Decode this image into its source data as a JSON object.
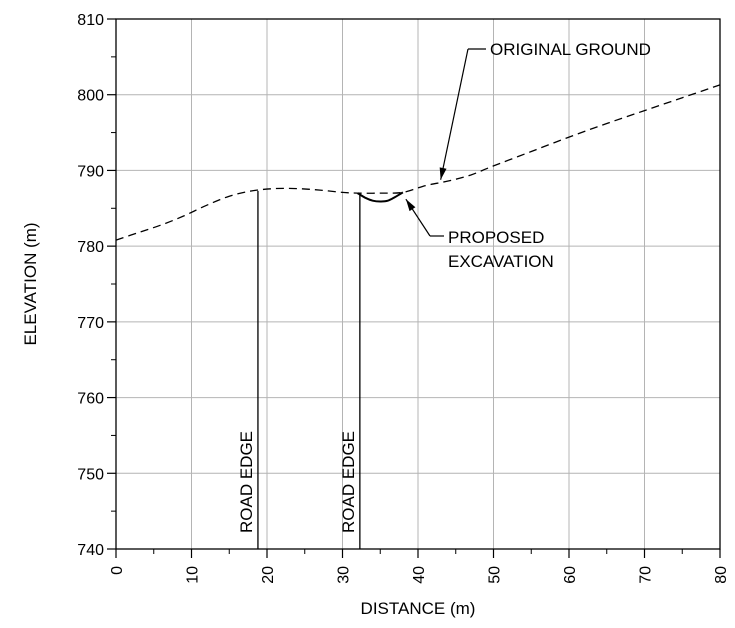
{
  "chart_data": {
    "type": "line",
    "title": "",
    "xlabel": "DISTANCE (m)",
    "ylabel": "ELEVATION (m)",
    "xlim": [
      0,
      80
    ],
    "ylim": [
      740,
      810
    ],
    "x_ticks": [
      0,
      10,
      20,
      30,
      40,
      50,
      60,
      70,
      80
    ],
    "y_ticks": [
      740,
      750,
      760,
      770,
      780,
      790,
      800,
      810
    ],
    "x_tick_labels": [
      "0",
      "10",
      "20",
      "30",
      "40",
      "50",
      "60",
      "70",
      "80"
    ],
    "y_tick_labels": [
      "740",
      "750",
      "760",
      "770",
      "780",
      "790",
      "800",
      "810"
    ],
    "grid": true,
    "series": [
      {
        "name": "ORIGINAL GROUND",
        "style": "dashed",
        "color": "#000000",
        "x": [
          0,
          3,
          6,
          9,
          12,
          15,
          18,
          21,
          24,
          27,
          30,
          32,
          35,
          38,
          41,
          44,
          47,
          50,
          55,
          60,
          65,
          70,
          75,
          80
        ],
        "y": [
          780.8,
          781.8,
          782.8,
          784.0,
          785.4,
          786.6,
          787.3,
          787.6,
          787.6,
          787.4,
          787.1,
          787.0,
          787.0,
          787.1,
          788.0,
          788.6,
          789.4,
          790.6,
          792.5,
          794.4,
          796.2,
          797.9,
          799.6,
          801.3
        ]
      },
      {
        "name": "PROPOSED EXCAVATION",
        "style": "solid",
        "color": "#000000",
        "x": [
          32,
          33,
          34,
          35,
          36,
          37,
          38
        ],
        "y": [
          787.0,
          786.4,
          786.0,
          785.9,
          786.0,
          786.5,
          787.1
        ]
      }
    ],
    "annotations": [
      {
        "text": "ORIGINAL GROUND",
        "target": [
          43,
          788.5
        ]
      },
      {
        "text_lines": [
          "PROPOSED",
          "EXCAVATION"
        ],
        "target": [
          38,
          786.6
        ]
      }
    ],
    "vertical_markers": [
      {
        "label": "ROAD EDGE",
        "x": 18.8,
        "y_top": 787.3
      },
      {
        "label": "ROAD EDGE",
        "x": 32.3,
        "y_top": 787.0
      }
    ]
  }
}
